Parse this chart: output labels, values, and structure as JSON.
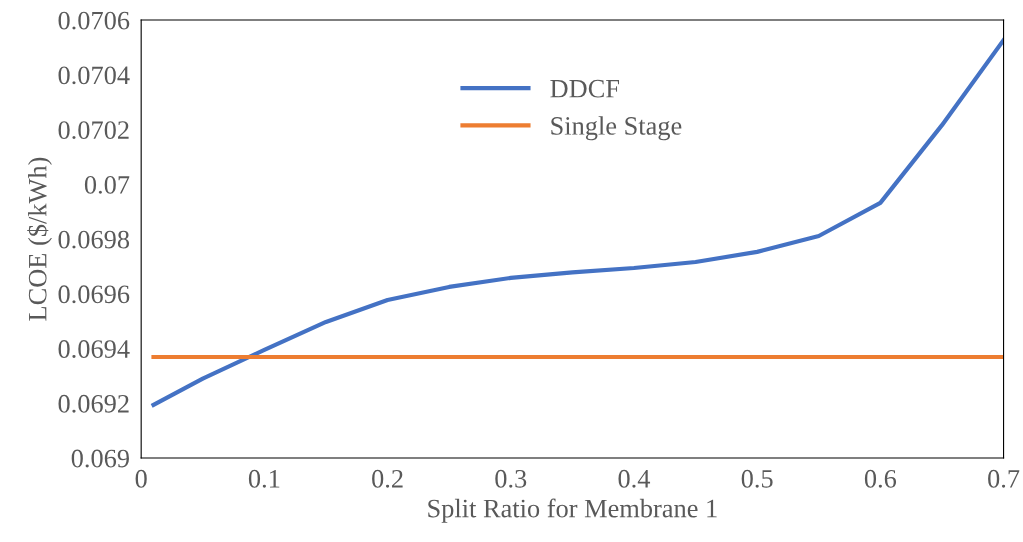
{
  "chart_data": {
    "type": "line",
    "xlabel": "Split Ratio for Membrane 1",
    "ylabel": "LCOE ($/kWh)",
    "xlim": [
      0,
      0.7
    ],
    "xticks": [
      0,
      0.1,
      0.2,
      0.3,
      0.4,
      0.5,
      0.6,
      0.7
    ],
    "ylim": [
      0.069,
      0.0706
    ],
    "yticks": [
      0.069,
      0.0692,
      0.0694,
      0.0696,
      0.0698,
      {
        "value": 0.07,
        "label": "0.07"
      },
      0.0702,
      0.0704,
      0.0706
    ],
    "grid": false,
    "legend": "top",
    "marker": "none",
    "line_style": "solid",
    "series": [
      {
        "name": "DDCF",
        "color": "#4472c4",
        "x": [
          0.01,
          0.05,
          0.1,
          0.15,
          0.2,
          0.25,
          0.3,
          0.35,
          0.4,
          0.45,
          0.5,
          0.55,
          0.6,
          0.65,
          0.7
        ],
        "values": [
          0.069194,
          0.06929,
          0.069395,
          0.069497,
          0.069577,
          0.069625,
          0.069658,
          0.069678,
          0.069694,
          0.069716,
          0.069753,
          0.069811,
          0.069932,
          0.070216,
          0.070527
        ]
      },
      {
        "name": "Single Stage",
        "color": "#ed7d31",
        "x": [
          0.01,
          0.7
        ],
        "values": [
          0.069369,
          0.069369
        ]
      }
    ]
  }
}
